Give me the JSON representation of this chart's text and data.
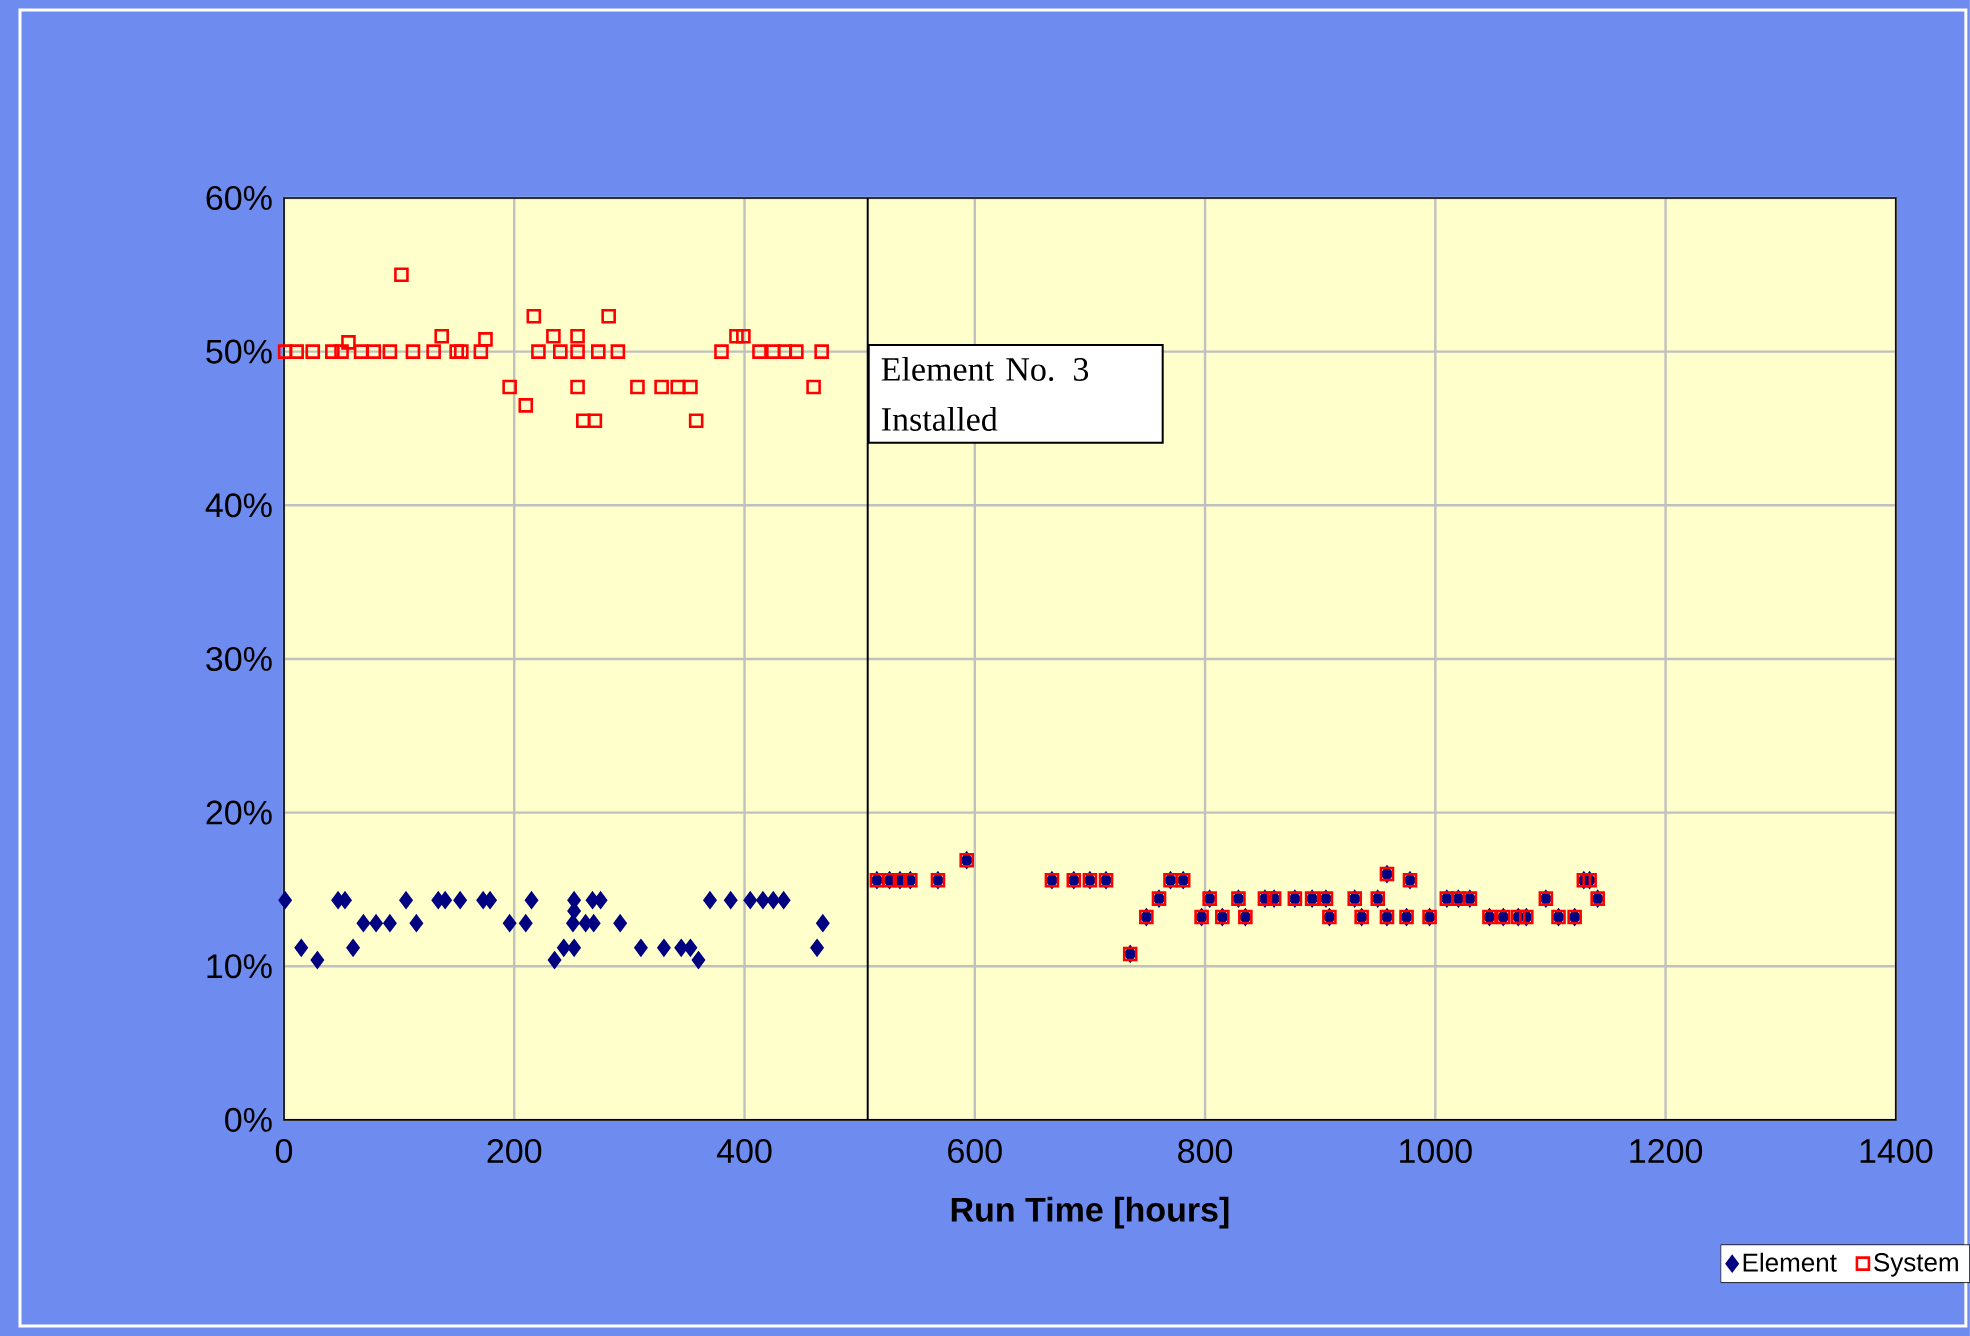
{
  "chart_data": {
    "type": "scatter",
    "xlabel": "Run Time [hours]",
    "xlim": [
      0,
      1400
    ],
    "xticks": [
      0,
      200,
      400,
      600,
      800,
      1000,
      1200,
      1400
    ],
    "ylim": [
      0,
      60
    ],
    "yticks": [
      {
        "value": 0,
        "label": "0%"
      },
      {
        "value": 10,
        "label": "10%"
      },
      {
        "value": 20,
        "label": "20%"
      },
      {
        "value": 30,
        "label": "30%"
      },
      {
        "value": 40,
        "label": "40%"
      },
      {
        "value": 50,
        "label": "50%"
      },
      {
        "value": 60,
        "label": "60%"
      }
    ],
    "grid": true,
    "legend": "bottom right",
    "ref_lines": [
      {
        "axis": "x",
        "value": 507,
        "label": "Element No. 3 Installed",
        "color": "#000000"
      }
    ],
    "series": [
      {
        "name": "Element",
        "color": "#000080",
        "marker": "diamond",
        "x": [
          1,
          15,
          29,
          47,
          53,
          60,
          69,
          80,
          92,
          106,
          115,
          134,
          140,
          153,
          173,
          179,
          196,
          210,
          215,
          235,
          243,
          251,
          252,
          252,
          252,
          262,
          268,
          269,
          275,
          292,
          310,
          330,
          345,
          353,
          360,
          370,
          388,
          405,
          416,
          425,
          434,
          463,
          468,
          515,
          526,
          535,
          544,
          568,
          593,
          667,
          686,
          700,
          714,
          735,
          749,
          760,
          770,
          781,
          797,
          804,
          815,
          829,
          835,
          852,
          860,
          878,
          893,
          905,
          908,
          930,
          936,
          950,
          958,
          958,
          975,
          978,
          995,
          1010,
          1020,
          1030,
          1047,
          1059,
          1072,
          1079,
          1096,
          1107,
          1121,
          1129,
          1134,
          1141
        ],
        "values": [
          14.3,
          11.2,
          10.4,
          14.3,
          14.3,
          11.2,
          12.8,
          12.8,
          12.8,
          14.3,
          12.8,
          14.3,
          14.3,
          14.3,
          14.3,
          14.3,
          12.8,
          12.8,
          14.3,
          10.4,
          11.2,
          12.8,
          14.3,
          13.6,
          11.2,
          12.8,
          14.3,
          12.8,
          14.3,
          12.8,
          11.2,
          11.2,
          11.2,
          11.2,
          10.4,
          14.3,
          14.3,
          14.3,
          14.3,
          14.3,
          14.3,
          11.2,
          12.8,
          15.6,
          15.6,
          15.6,
          15.6,
          15.6,
          16.9,
          15.6,
          15.6,
          15.6,
          15.6,
          10.8,
          13.2,
          14.4,
          15.6,
          15.6,
          13.2,
          14.4,
          13.2,
          14.4,
          13.2,
          14.4,
          14.4,
          14.4,
          14.4,
          14.4,
          13.2,
          14.4,
          13.2,
          14.4,
          16.0,
          13.2,
          13.2,
          15.6,
          13.2,
          14.4,
          14.4,
          14.4,
          13.2,
          13.2,
          13.2,
          13.2,
          14.4,
          13.2,
          13.2,
          15.6,
          15.6,
          14.4
        ]
      },
      {
        "name": "System",
        "color": "#ff0000",
        "marker": "square",
        "x": [
          1,
          11,
          25,
          42,
          50,
          56,
          67,
          78,
          92,
          102,
          112,
          130,
          137,
          150,
          154,
          171,
          175,
          196,
          210,
          217,
          221,
          234,
          240,
          255,
          255,
          255,
          260,
          270,
          273,
          282,
          290,
          307,
          328,
          342,
          353,
          358,
          380,
          393,
          399,
          413,
          425,
          435,
          445,
          460,
          467,
          515,
          526,
          535,
          544,
          568,
          593,
          667,
          686,
          700,
          714,
          735,
          749,
          760,
          770,
          781,
          797,
          804,
          815,
          829,
          835,
          852,
          860,
          878,
          893,
          905,
          908,
          930,
          936,
          950,
          958,
          958,
          975,
          978,
          995,
          1010,
          1020,
          1030,
          1047,
          1059,
          1072,
          1079,
          1096,
          1107,
          1121,
          1129,
          1134,
          1141
        ],
        "values": [
          50.0,
          50.0,
          50.0,
          50.0,
          50.0,
          50.6,
          50.0,
          50.0,
          50.0,
          55.0,
          50.0,
          50.0,
          51.0,
          50.0,
          50.0,
          50.0,
          50.8,
          47.7,
          46.5,
          52.3,
          50.0,
          51.0,
          50.0,
          51.0,
          50.0,
          47.7,
          45.5,
          45.5,
          50.0,
          52.3,
          50.0,
          47.7,
          47.7,
          47.7,
          47.7,
          45.5,
          50.0,
          51.0,
          51.0,
          50.0,
          50.0,
          50.0,
          50.0,
          47.7,
          50.0,
          15.6,
          15.6,
          15.6,
          15.6,
          15.6,
          16.9,
          15.6,
          15.6,
          15.6,
          15.6,
          10.8,
          13.2,
          14.4,
          15.6,
          15.6,
          13.2,
          14.4,
          13.2,
          14.4,
          13.2,
          14.4,
          14.4,
          14.4,
          14.4,
          14.4,
          13.2,
          14.4,
          13.2,
          14.4,
          16.0,
          13.2,
          13.2,
          15.6,
          13.2,
          14.4,
          14.4,
          14.4,
          13.2,
          13.2,
          13.2,
          13.2,
          14.4,
          13.2,
          13.2,
          15.6,
          15.6,
          14.4
        ]
      }
    ]
  }
}
